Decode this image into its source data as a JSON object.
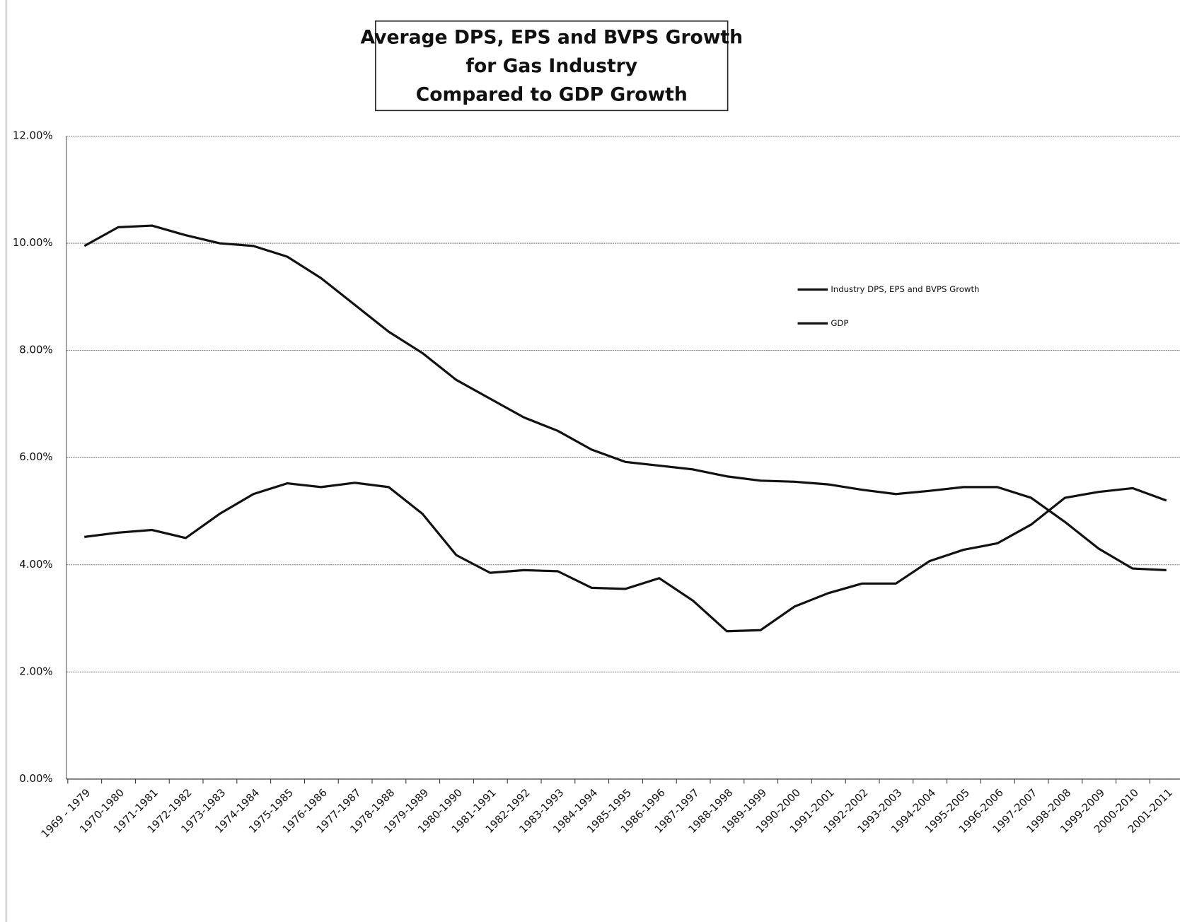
{
  "chart_data": {
    "type": "line",
    "title": [
      "Average DPS, EPS and BVPS Growth",
      "for Gas Industry",
      "Compared to GDP Growth"
    ],
    "categories": [
      "1969 - 1979",
      "1970-1980",
      "1971-1981",
      "1972-1982",
      "1973-1983",
      "1974-1984",
      "1975-1985",
      "1976-1986",
      "1977-1987",
      "1978-1988",
      "1979-1989",
      "1980-1990",
      "1981-1991",
      "1982-1992",
      "1983-1993",
      "1984-1994",
      "1985-1995",
      "1986-1996",
      "1987-1997",
      "1988-1998",
      "1989-1999",
      "1990-2000",
      "1991-2001",
      "1992-2002",
      "1993-2003",
      "1994-2004",
      "1995-2005",
      "1996-2006",
      "1997-2007",
      "1998-2008",
      "1999-2009",
      "2000-2010",
      "2001-2011"
    ],
    "series": [
      {
        "name": "Industry DPS, EPS and BVPS Growth",
        "color": "#111111",
        "values": [
          9.95,
          10.3,
          10.33,
          10.15,
          10.0,
          9.95,
          9.75,
          9.35,
          8.85,
          8.35,
          7.95,
          7.45,
          7.1,
          6.75,
          6.5,
          6.15,
          5.92,
          5.85,
          5.78,
          5.65,
          5.57,
          5.55,
          5.5,
          5.4,
          5.32,
          5.38,
          5.45,
          5.45,
          5.25,
          4.8,
          4.3,
          3.93,
          3.9
        ]
      },
      {
        "name": "GDP",
        "color": "#111111",
        "values": [
          4.52,
          4.6,
          4.65,
          4.5,
          4.95,
          5.32,
          5.52,
          5.45,
          5.53,
          5.45,
          4.95,
          4.18,
          3.85,
          3.9,
          3.88,
          3.57,
          3.55,
          3.75,
          3.33,
          2.76,
          2.78,
          3.22,
          3.47,
          3.65,
          3.65,
          4.07,
          4.28,
          4.4,
          4.75,
          5.25,
          5.36,
          5.43,
          5.2
        ]
      }
    ],
    "ylim": [
      0,
      12
    ],
    "yticks": [
      {
        "value": 0,
        "label": "0.00%"
      },
      {
        "value": 2,
        "label": "2.00%"
      },
      {
        "value": 4,
        "label": "4.00%"
      },
      {
        "value": 6,
        "label": "6.00%"
      },
      {
        "value": 8,
        "label": "8.00%"
      },
      {
        "value": 10,
        "label": "10.00%"
      },
      {
        "value": 12,
        "label": "12.00%"
      }
    ],
    "grid": true
  }
}
